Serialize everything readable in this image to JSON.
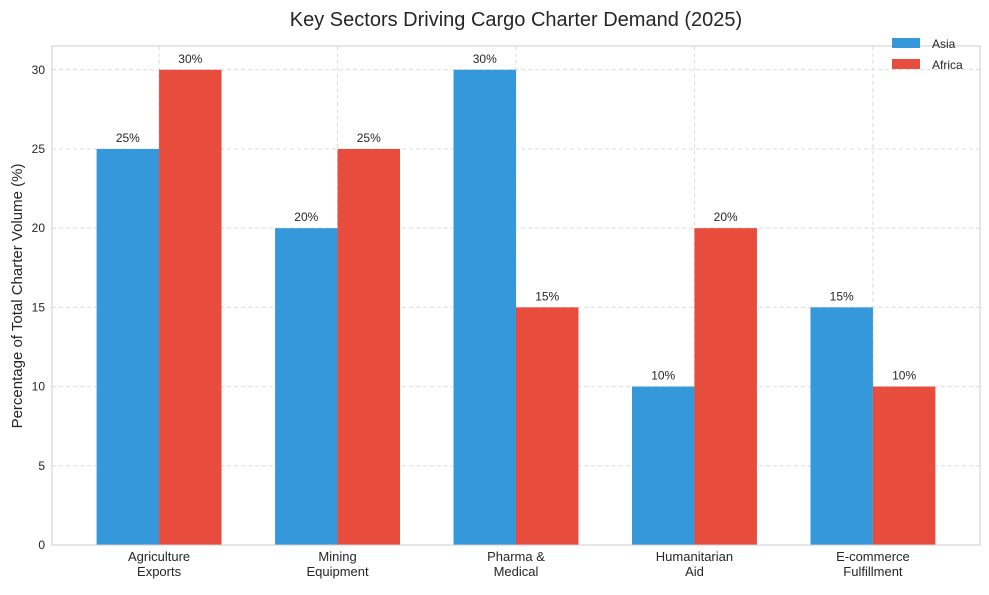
{
  "chart_data": {
    "type": "bar",
    "title": "Key Sectors Driving Cargo Charter Demand (2025)",
    "xlabel": "",
    "ylabel": "Percentage of Total Charter Volume (%)",
    "ylim": [
      0,
      31.5
    ],
    "yticks": [
      0,
      5,
      10,
      15,
      20,
      25,
      30
    ],
    "grid": true,
    "legend_position": "top-right",
    "categories": [
      [
        "Agriculture",
        "Exports"
      ],
      [
        "Mining",
        "Equipment"
      ],
      [
        "Pharma &",
        "Medical"
      ],
      [
        "Humanitarian",
        "Aid"
      ],
      [
        "E-commerce",
        "Fulfillment"
      ]
    ],
    "series": [
      {
        "name": "Asia",
        "color": "#3498db",
        "values": [
          25,
          20,
          30,
          10,
          15
        ],
        "labels": [
          "25%",
          "20%",
          "30%",
          "10%",
          "15%"
        ]
      },
      {
        "name": "Africa",
        "color": "#e74c3c",
        "values": [
          30,
          25,
          15,
          20,
          10
        ],
        "labels": [
          "30%",
          "25%",
          "15%",
          "20%",
          "10%"
        ]
      }
    ]
  }
}
